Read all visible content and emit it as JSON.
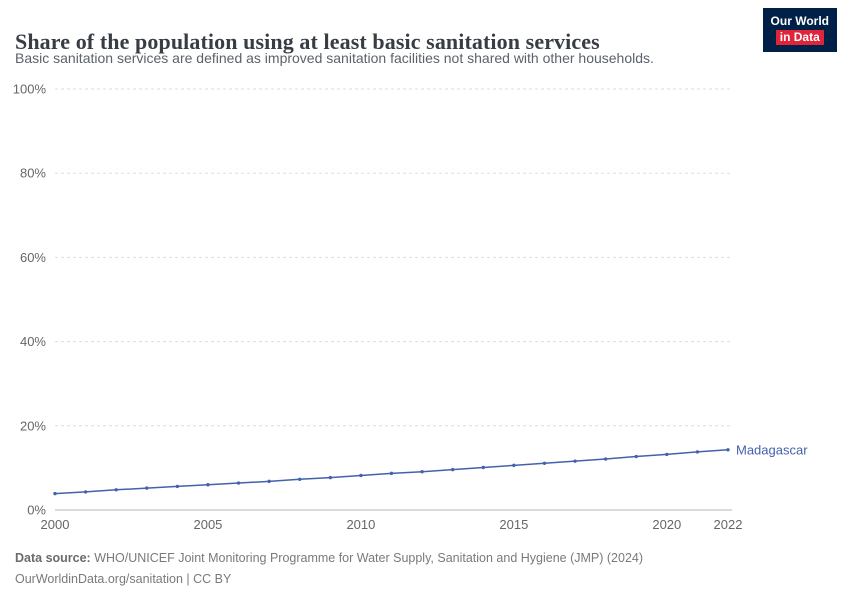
{
  "header": {
    "title": "Share of the population using at least basic sanitation services",
    "subtitle": "Basic sanitation services are defined as improved sanitation facilities not shared with other households.",
    "logo": {
      "line1": "Our World",
      "line2": "in Data"
    }
  },
  "chart_data": {
    "type": "line",
    "title": "Share of the population using at least basic sanitation services",
    "x": [
      2000,
      2001,
      2002,
      2003,
      2004,
      2005,
      2006,
      2007,
      2008,
      2009,
      2010,
      2011,
      2012,
      2013,
      2014,
      2015,
      2016,
      2017,
      2018,
      2019,
      2020,
      2021,
      2022
    ],
    "series": [
      {
        "name": "Madagascar",
        "color": "#4262ab",
        "values": [
          3.9,
          4.3,
          4.8,
          5.2,
          5.6,
          6.0,
          6.4,
          6.8,
          7.3,
          7.7,
          8.2,
          8.7,
          9.1,
          9.6,
          10.1,
          10.6,
          11.1,
          11.6,
          12.1,
          12.7,
          13.2,
          13.8,
          14.3
        ]
      }
    ],
    "xlim": [
      2000,
      2022
    ],
    "ylim": [
      0,
      100
    ],
    "xticks": [
      2000,
      2005,
      2010,
      2015,
      2020,
      2022
    ],
    "yticks": [
      0,
      20,
      40,
      60,
      80,
      100
    ],
    "ytick_suffix": "%",
    "grid": "horizontal-dashed",
    "legend_position": "end-of-line",
    "colors": {
      "gridline": "#dddddd",
      "axis_line": "#b5b5b5",
      "tick_label": "#666666"
    }
  },
  "footer": {
    "datasource_label": "Data source:",
    "datasource_text": " WHO/UNICEF Joint Monitoring Programme for Water Supply, Sanitation and Hygiene (JMP) (2024)",
    "license_text": "OurWorldinData.org/sanitation | CC BY"
  }
}
